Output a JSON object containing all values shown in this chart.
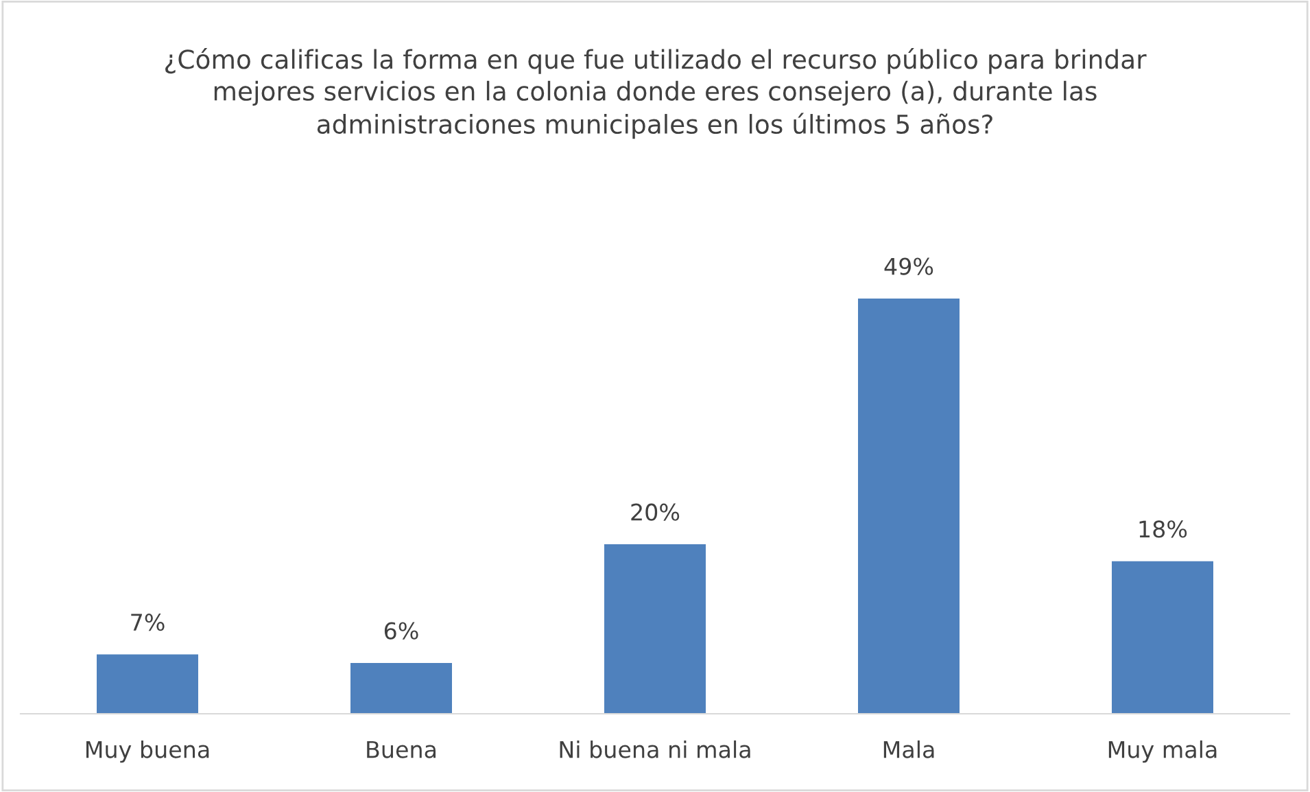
{
  "chart_data": {
    "type": "bar",
    "title": "¿Cómo calificas la forma en que fue utilizado el recurso público para brindar\nmejores servicios en la colonia donde eres consejero (a), durante las\nadministraciones municipales en los últimos 5 años?",
    "categories": [
      "Muy buena",
      "Buena",
      "Ni buena ni mala",
      "Mala",
      "Muy mala"
    ],
    "values": [
      7,
      6,
      20,
      49,
      18
    ],
    "value_labels": [
      "7%",
      "6%",
      "20%",
      "49%",
      "18%"
    ],
    "color": "#4f81bd"
  }
}
